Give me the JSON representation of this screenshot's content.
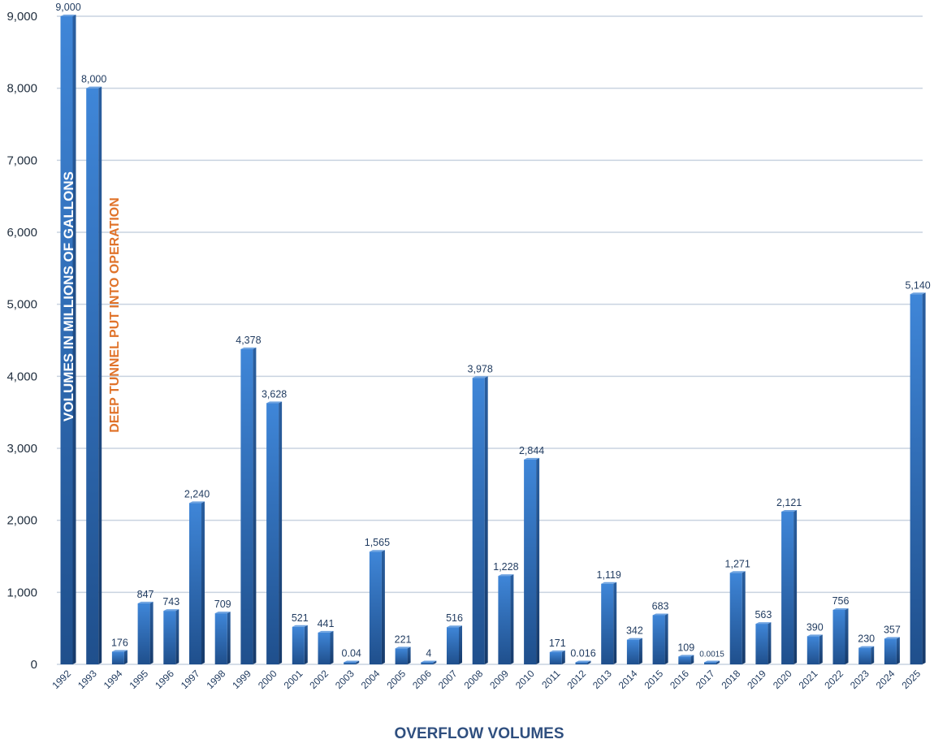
{
  "chart_data": {
    "type": "bar",
    "xlabel": "OVERFLOW VOLUMES",
    "ylabel": "VOLUMES IN MILLIONS OF GALLONS",
    "ylim": [
      0,
      9000
    ],
    "yticks": [
      "0",
      "1,000",
      "2,000",
      "3,000",
      "4,000",
      "5,000",
      "6,000",
      "7,000",
      "8,000",
      "9,000"
    ],
    "grid": true,
    "categories": [
      "1992",
      "1993",
      "1994",
      "1995",
      "1996",
      "1997",
      "1998",
      "1999",
      "2000",
      "2001",
      "2002",
      "2003",
      "2004",
      "2005",
      "2006",
      "2007",
      "2008",
      "2009",
      "2010",
      "2011",
      "2012",
      "2013",
      "2014",
      "2015",
      "2016",
      "2017",
      "2018",
      "2019",
      "2020",
      "2021",
      "2022",
      "2023",
      "2024",
      "2025"
    ],
    "values": [
      9000,
      8000,
      176,
      847,
      743,
      2240,
      709,
      4378,
      3628,
      521,
      441,
      0.04,
      1565,
      221,
      4,
      516,
      3978,
      1228,
      2844,
      171,
      0.016,
      1119,
      342,
      683,
      109,
      0.0015,
      1271,
      563,
      2121,
      390,
      756,
      230,
      357,
      5140
    ],
    "value_labels": [
      "9,000",
      "8,000",
      "176",
      "847",
      "743",
      "2,240",
      "709",
      "4,378",
      "3,628",
      "521",
      "441",
      "0.04",
      "1,565",
      "221",
      "4",
      "516",
      "3,978",
      "1,228",
      "2,844",
      "171",
      "0.016",
      "1,119",
      "342",
      "683",
      "109",
      "0.0015",
      "1,271",
      "563",
      "2,121",
      "390",
      "756",
      "230",
      "357",
      "5,140"
    ],
    "annotation": "DEEP TUNNEL PUT INTO OPERATION",
    "colors": {
      "bar": "#3a7fd0",
      "bar_dark": "#1d4f8f",
      "annotation": "#e0732a",
      "grid": "#c9d3e0",
      "axis_title": "#2f4f7f"
    }
  }
}
